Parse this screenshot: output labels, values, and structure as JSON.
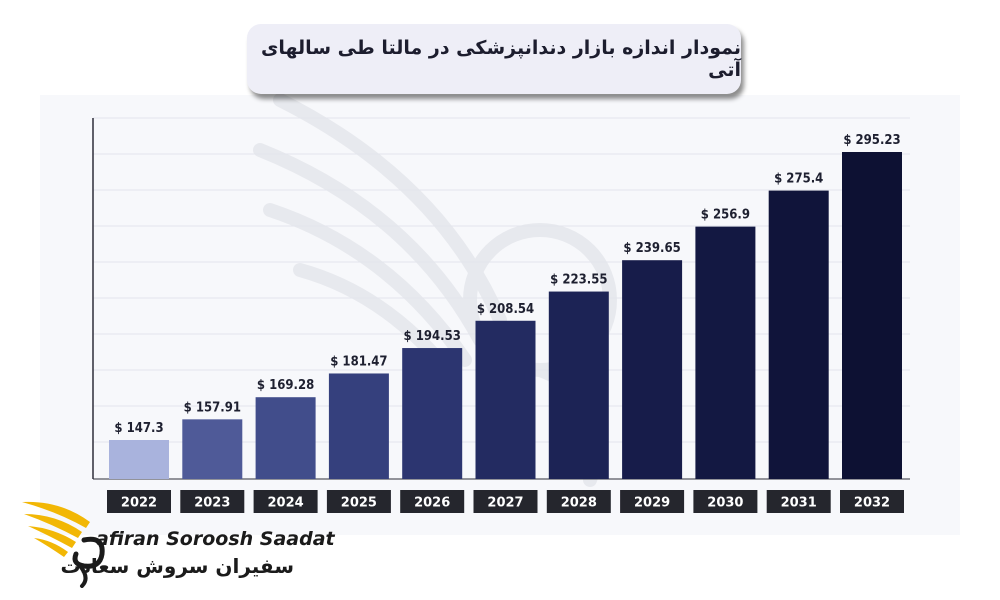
{
  "chart_data": {
    "type": "bar",
    "title": "نمودار اندازه بازار دندانپزشکی در مالتا طی سالهای آتی",
    "categories": [
      "2022",
      "2023",
      "2024",
      "2025",
      "2026",
      "2027",
      "2028",
      "2029",
      "2030",
      "2031",
      "2032"
    ],
    "values": [
      147.3,
      157.91,
      169.28,
      181.47,
      194.53,
      208.54,
      223.55,
      239.65,
      256.9,
      275.4,
      295.23
    ],
    "value_labels": [
      "$ 147.3",
      "$ 157.91",
      "$ 169.28",
      "$ 181.47",
      "$ 194.53",
      "$ 208.54",
      "$ 223.55",
      "$ 239.65",
      "$ 256.9",
      "$ 275.4",
      "$ 295.23"
    ],
    "bar_colors": [
      "#a9b3dd",
      "#4f5a98",
      "#414d8b",
      "#35407d",
      "#2c3570",
      "#232b61",
      "#1c2355",
      "#171c4a",
      "#131842",
      "#10143a",
      "#0d1133"
    ],
    "year_box_color": "#25262d",
    "grid": true,
    "ylim": [
      130,
      300
    ]
  },
  "brand": {
    "english": "afiran Soroosh Saadat",
    "persian": "سفیران سروش سعادت",
    "accent_color": "#f2b705"
  }
}
